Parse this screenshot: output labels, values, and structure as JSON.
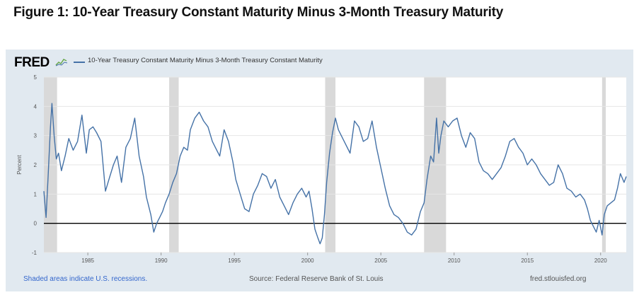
{
  "figure_title": "Figure 1: 10-Year Treasury Constant Maturity Minus 3-Month Treasury Maturity",
  "fred": {
    "logo": "FRED",
    "logo_icon": "line-chart-icon",
    "series_legend": "10-Year Treasury Constant Maturity Minus 3-Month Treasury Constant Maturity"
  },
  "footer": {
    "recession_note": "Shaded areas indicate U.S. recessions.",
    "source": "Source: Federal Reserve Bank of St. Louis",
    "site": "fred.stlouisfed.org"
  },
  "colors": {
    "series": "#4572a7",
    "recession": "#d9d9d9",
    "panel": "#e1e9f0",
    "plot_bg": "#ffffff",
    "zero_line": "#000000",
    "link": "#3366cc"
  },
  "chart_data": {
    "type": "line",
    "title": "",
    "xlabel": "",
    "ylabel": "Percent",
    "xlim": [
      1982.0,
      2021.75
    ],
    "ylim": [
      -1,
      5
    ],
    "x_ticks": [
      1985,
      1990,
      1995,
      2000,
      2005,
      2010,
      2015,
      2020
    ],
    "y_ticks": [
      -1,
      0,
      1,
      2,
      3,
      4,
      5
    ],
    "grid": true,
    "legend_position": "top-left",
    "recessions": [
      [
        1982.0,
        1982.9
      ],
      [
        1990.55,
        1991.2
      ],
      [
        2001.2,
        2001.9
      ],
      [
        2007.95,
        2009.45
      ],
      [
        2020.1,
        2020.35
      ]
    ],
    "reference_line": 0,
    "series": [
      {
        "name": "10-Year Treasury Constant Maturity Minus 3-Month Treasury Constant Maturity",
        "x": [
          1982.0,
          1982.15,
          1982.3,
          1982.45,
          1982.55,
          1982.7,
          1982.85,
          1983.0,
          1983.2,
          1983.45,
          1983.7,
          1984.0,
          1984.3,
          1984.6,
          1984.9,
          1985.1,
          1985.35,
          1985.6,
          1985.9,
          1986.2,
          1986.5,
          1986.75,
          1987.0,
          1987.3,
          1987.6,
          1987.9,
          1988.2,
          1988.5,
          1988.8,
          1989.0,
          1989.15,
          1989.3,
          1989.5,
          1989.7,
          1989.9,
          1990.1,
          1990.3,
          1990.55,
          1990.8,
          1991.05,
          1991.3,
          1991.55,
          1991.8,
          1992.0,
          1992.3,
          1992.6,
          1992.9,
          1993.2,
          1993.5,
          1993.8,
          1994.0,
          1994.3,
          1994.6,
          1994.9,
          1995.1,
          1995.4,
          1995.7,
          1996.0,
          1996.3,
          1996.6,
          1996.9,
          1997.2,
          1997.5,
          1997.8,
          1998.1,
          1998.4,
          1998.7,
          1999.0,
          1999.3,
          1999.6,
          1999.9,
          2000.1,
          2000.3,
          2000.5,
          2000.7,
          2000.85,
          2001.0,
          2001.15,
          2001.3,
          2001.5,
          2001.7,
          2001.9,
          2002.1,
          2002.3,
          2002.6,
          2002.9,
          2003.2,
          2003.5,
          2003.8,
          2004.1,
          2004.4,
          2004.7,
          2005.0,
          2005.3,
          2005.6,
          2005.9,
          2006.2,
          2006.5,
          2006.8,
          2007.1,
          2007.4,
          2007.7,
          2007.95,
          2008.15,
          2008.4,
          2008.6,
          2008.8,
          2008.95,
          2009.1,
          2009.3,
          2009.6,
          2009.9,
          2010.2,
          2010.5,
          2010.8,
          2011.1,
          2011.4,
          2011.7,
          2012.0,
          2012.3,
          2012.6,
          2012.9,
          2013.2,
          2013.5,
          2013.8,
          2014.1,
          2014.4,
          2014.7,
          2015.0,
          2015.3,
          2015.6,
          2015.9,
          2016.2,
          2016.5,
          2016.8,
          2017.1,
          2017.4,
          2017.7,
          2018.0,
          2018.3,
          2018.6,
          2018.9,
          2019.1,
          2019.3,
          2019.5,
          2019.7,
          2019.9,
          2020.1,
          2020.25,
          2020.45,
          2020.7,
          2020.95,
          2021.15,
          2021.35,
          2021.6,
          2021.75
        ],
        "values": [
          1.1,
          0.2,
          1.7,
          3.3,
          4.1,
          3.0,
          2.2,
          2.4,
          1.8,
          2.3,
          2.9,
          2.5,
          2.8,
          3.7,
          2.4,
          3.2,
          3.3,
          3.1,
          2.8,
          1.1,
          1.6,
          2.0,
          2.3,
          1.4,
          2.6,
          2.9,
          3.6,
          2.3,
          1.6,
          0.9,
          0.6,
          0.3,
          -0.3,
          0.0,
          0.2,
          0.4,
          0.7,
          1.0,
          1.4,
          1.7,
          2.3,
          2.6,
          2.5,
          3.2,
          3.6,
          3.8,
          3.5,
          3.3,
          2.8,
          2.5,
          2.3,
          3.2,
          2.8,
          2.1,
          1.5,
          1.0,
          0.5,
          0.4,
          1.0,
          1.3,
          1.7,
          1.6,
          1.2,
          1.5,
          0.9,
          0.6,
          0.3,
          0.7,
          1.0,
          1.2,
          0.9,
          1.1,
          0.5,
          -0.2,
          -0.5,
          -0.7,
          -0.5,
          0.3,
          1.4,
          2.4,
          3.1,
          3.6,
          3.2,
          3.0,
          2.7,
          2.4,
          3.5,
          3.3,
          2.8,
          2.9,
          3.5,
          2.6,
          1.9,
          1.2,
          0.6,
          0.3,
          0.2,
          0.0,
          -0.3,
          -0.4,
          -0.2,
          0.4,
          0.7,
          1.5,
          2.3,
          2.1,
          3.6,
          2.4,
          3.0,
          3.5,
          3.3,
          3.5,
          3.6,
          3.0,
          2.6,
          3.1,
          2.9,
          2.1,
          1.8,
          1.7,
          1.5,
          1.7,
          1.9,
          2.3,
          2.8,
          2.9,
          2.6,
          2.4,
          2.0,
          2.2,
          2.0,
          1.7,
          1.5,
          1.3,
          1.4,
          2.0,
          1.7,
          1.2,
          1.1,
          0.9,
          1.0,
          0.8,
          0.5,
          0.1,
          -0.1,
          -0.3,
          0.1,
          -0.4,
          0.3,
          0.6,
          0.7,
          0.8,
          1.2,
          1.7,
          1.4,
          1.6
        ]
      }
    ]
  }
}
